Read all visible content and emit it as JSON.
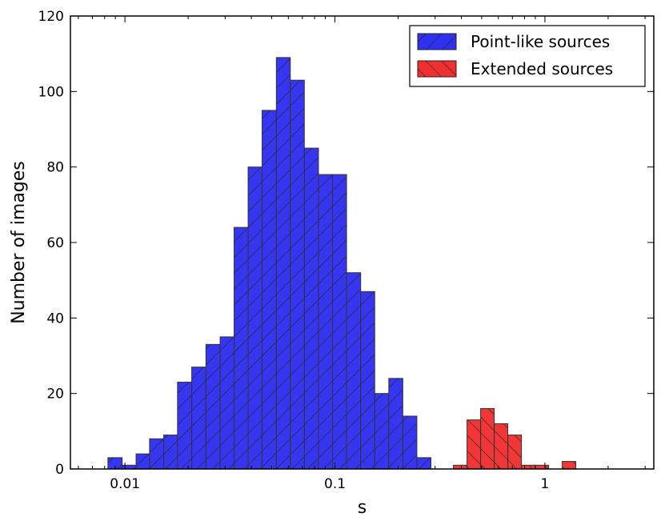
{
  "chart_data": {
    "type": "histogram",
    "xlabel": "s",
    "ylabel": "Number of images",
    "xscale": "log",
    "xlim": [
      0.0055,
      3.3
    ],
    "ylim": [
      0,
      120
    ],
    "xticks": [
      {
        "value": 0.01,
        "label": "0.01"
      },
      {
        "value": 0.1,
        "label": "0.1"
      },
      {
        "value": 1,
        "label": "1"
      }
    ],
    "yticks": [
      {
        "value": 0,
        "label": "0"
      },
      {
        "value": 20,
        "label": "20"
      },
      {
        "value": 40,
        "label": "40"
      },
      {
        "value": 60,
        "label": "60"
      },
      {
        "value": 80,
        "label": "80"
      },
      {
        "value": 100,
        "label": "100"
      },
      {
        "value": 120,
        "label": "120"
      }
    ],
    "grid": false,
    "legend_position": "top-right",
    "series": [
      {
        "name": "Point-like sources",
        "color": "#3030f0",
        "hatch": "forward-diagonal",
        "bins": [
          {
            "x0": 0.0083,
            "x1": 0.0097,
            "count": 3
          },
          {
            "x0": 0.0097,
            "x1": 0.0113,
            "count": 1
          },
          {
            "x0": 0.0113,
            "x1": 0.0131,
            "count": 4
          },
          {
            "x0": 0.0131,
            "x1": 0.0153,
            "count": 8
          },
          {
            "x0": 0.0153,
            "x1": 0.0178,
            "count": 9
          },
          {
            "x0": 0.0178,
            "x1": 0.0208,
            "count": 23
          },
          {
            "x0": 0.0208,
            "x1": 0.0243,
            "count": 27
          },
          {
            "x0": 0.0243,
            "x1": 0.0284,
            "count": 33
          },
          {
            "x0": 0.0284,
            "x1": 0.0331,
            "count": 35
          },
          {
            "x0": 0.0331,
            "x1": 0.0386,
            "count": 64
          },
          {
            "x0": 0.0386,
            "x1": 0.045,
            "count": 80
          },
          {
            "x0": 0.045,
            "x1": 0.0526,
            "count": 95
          },
          {
            "x0": 0.0526,
            "x1": 0.0613,
            "count": 109
          },
          {
            "x0": 0.0613,
            "x1": 0.0715,
            "count": 103
          },
          {
            "x0": 0.0715,
            "x1": 0.0835,
            "count": 85
          },
          {
            "x0": 0.0835,
            "x1": 0.0974,
            "count": 78
          },
          {
            "x0": 0.0974,
            "x1": 0.1136,
            "count": 78
          },
          {
            "x0": 0.1136,
            "x1": 0.1326,
            "count": 52
          },
          {
            "x0": 0.1326,
            "x1": 0.1547,
            "count": 47
          },
          {
            "x0": 0.1547,
            "x1": 0.1805,
            "count": 20
          },
          {
            "x0": 0.1805,
            "x1": 0.2105,
            "count": 24
          },
          {
            "x0": 0.2105,
            "x1": 0.2456,
            "count": 14
          },
          {
            "x0": 0.2456,
            "x1": 0.2866,
            "count": 3
          }
        ]
      },
      {
        "name": "Extended sources",
        "color": "#f03030",
        "hatch": "back-diagonal",
        "bins": [
          {
            "x0": 0.3667,
            "x1": 0.4256,
            "count": 1
          },
          {
            "x0": 0.4256,
            "x1": 0.4941,
            "count": 13
          },
          {
            "x0": 0.4941,
            "x1": 0.5736,
            "count": 16
          },
          {
            "x0": 0.5736,
            "x1": 0.6658,
            "count": 12
          },
          {
            "x0": 0.6658,
            "x1": 0.7729,
            "count": 9
          },
          {
            "x0": 0.7729,
            "x1": 0.8972,
            "count": 1
          },
          {
            "x0": 0.8972,
            "x1": 1.0415,
            "count": 1
          },
          {
            "x0": 1.0415,
            "x1": 1.209,
            "count": 0
          },
          {
            "x0": 1.209,
            "x1": 1.4035,
            "count": 2
          }
        ]
      }
    ]
  }
}
